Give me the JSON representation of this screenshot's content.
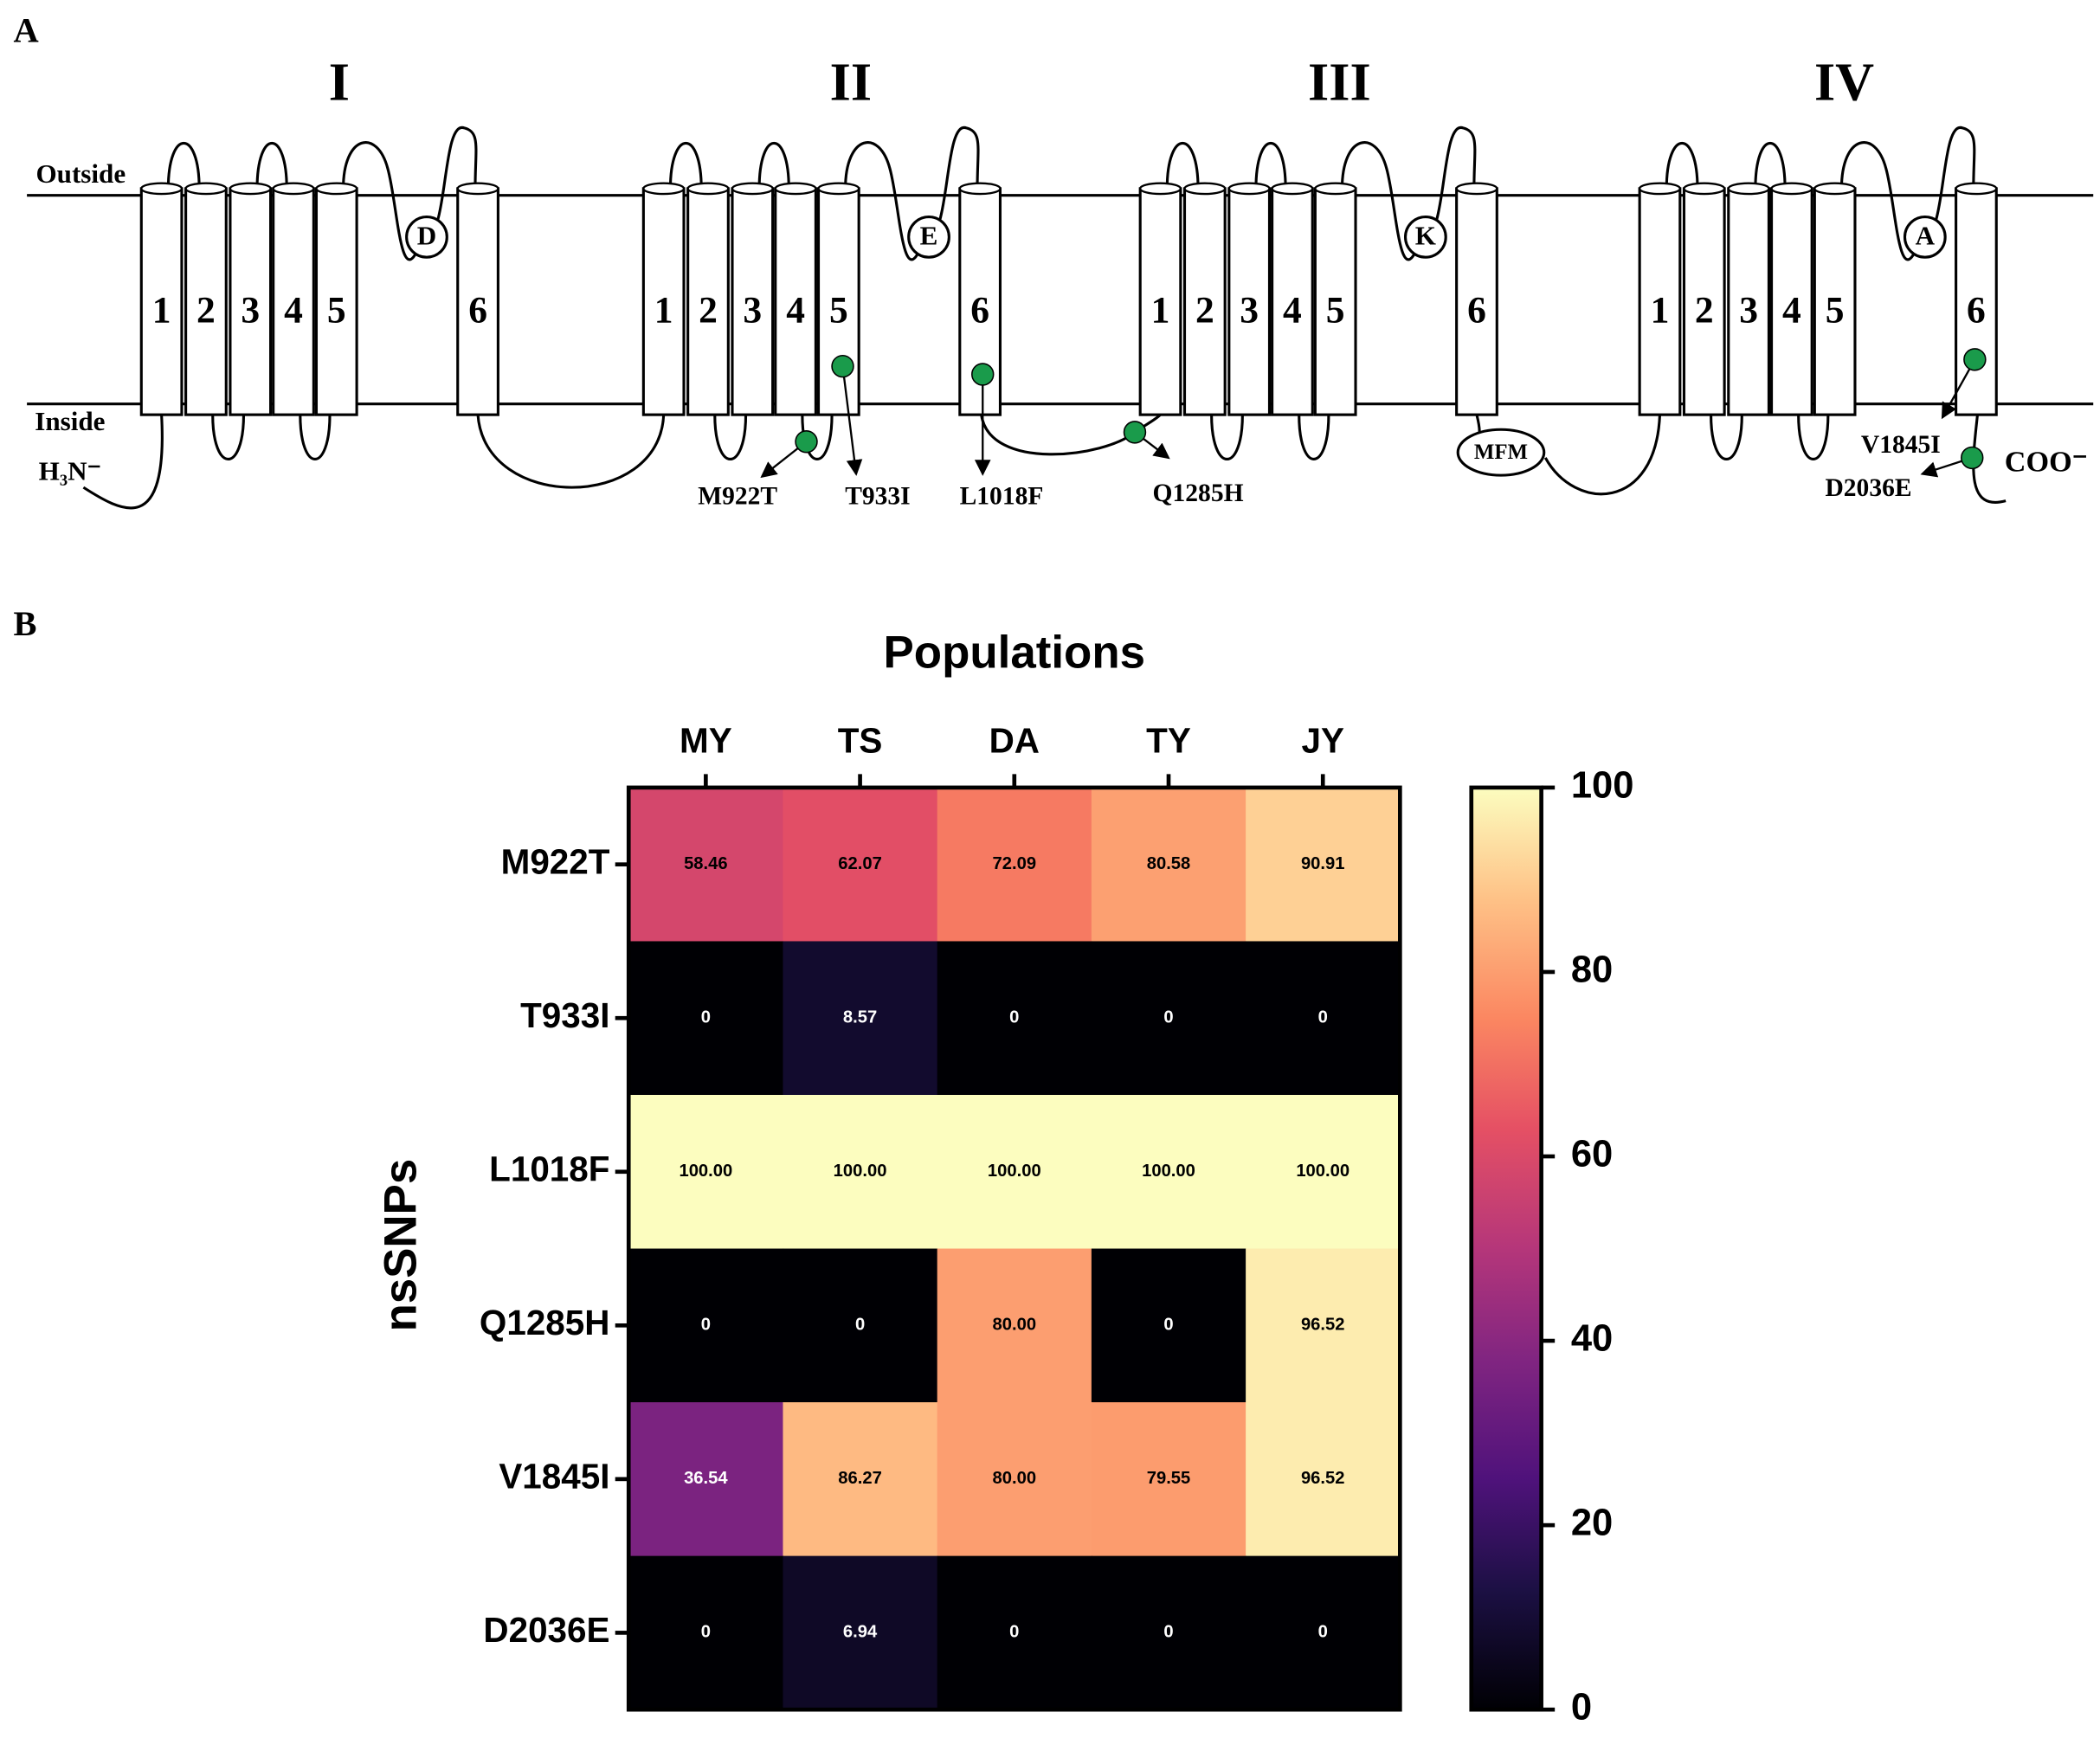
{
  "panel_a": {
    "label": "A",
    "outside": "Outside",
    "inside": "Inside",
    "n_terminus": "H₃N⁻",
    "c_terminus": "COO⁻",
    "motif": "MFM",
    "domains": [
      {
        "label": "I",
        "segments": [
          "1",
          "2",
          "3",
          "4",
          "5",
          "6"
        ],
        "residue": "D"
      },
      {
        "label": "II",
        "segments": [
          "1",
          "2",
          "3",
          "4",
          "5",
          "6"
        ],
        "residue": "E"
      },
      {
        "label": "III",
        "segments": [
          "1",
          "2",
          "3",
          "4",
          "5",
          "6"
        ],
        "residue": "K"
      },
      {
        "label": "IV",
        "segments": [
          "1",
          "2",
          "3",
          "4",
          "5",
          "6"
        ],
        "residue": "A"
      }
    ],
    "mutations": [
      "M922T",
      "T933I",
      "L1018F",
      "Q1285H",
      "V1845I",
      "D2036E"
    ]
  },
  "chart_data": {
    "type": "heatmap",
    "panel_label": "B",
    "title": "Populations",
    "y_label": "nsSNPs",
    "x_categories": [
      "MY",
      "TS",
      "DA",
      "TY",
      "JY"
    ],
    "y_categories": [
      "M922T",
      "T933I",
      "L1018F",
      "Q1285H",
      "V1845I",
      "D2036E"
    ],
    "values": [
      [
        58.46,
        62.07,
        72.09,
        80.58,
        90.91
      ],
      [
        0,
        8.57,
        0,
        0,
        0
      ],
      [
        100,
        100,
        100,
        100,
        100
      ],
      [
        0,
        0,
        80,
        0,
        96.52
      ],
      [
        36.54,
        86.27,
        80,
        79.55,
        96.52
      ],
      [
        0,
        6.94,
        0,
        0,
        0
      ]
    ],
    "value_labels": [
      [
        "58.46",
        "62.07",
        "72.09",
        "80.58",
        "90.91"
      ],
      [
        "0",
        "8.57",
        "0",
        "0",
        "0"
      ],
      [
        "100.00",
        "100.00",
        "100.00",
        "100.00",
        "100.00"
      ],
      [
        "0",
        "0",
        "80.00",
        "0",
        "96.52"
      ],
      [
        "36.54",
        "86.27",
        "80.00",
        "79.55",
        "96.52"
      ],
      [
        "0",
        "6.94",
        "0",
        "0",
        "0"
      ]
    ],
    "colormap": "magma",
    "zlim": [
      0,
      100
    ],
    "zticks": [
      0,
      20,
      40,
      60,
      80,
      100
    ]
  }
}
